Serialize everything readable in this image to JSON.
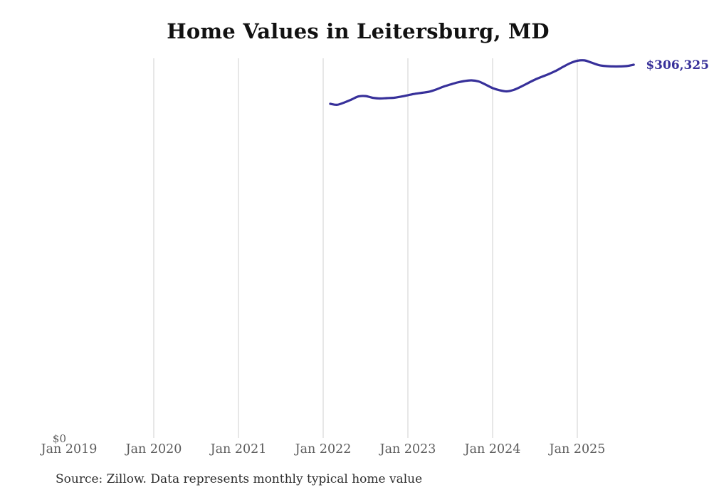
{
  "colors": {
    "background": "#ffffff",
    "line": "#37309a",
    "title": "#111111",
    "axis_labels": "#5c5c5c",
    "gridlines": "#cfcfcf",
    "source_text": "#2e2e2e"
  },
  "chart_data": {
    "type": "line",
    "title": "Home Values in Leitersburg, MD",
    "xlabel": "",
    "ylabel": "",
    "y_axis": {
      "min_label": "$0",
      "min_value": 0
    },
    "end_label": "$306,325",
    "end_value": 306325,
    "source": "Source: Zillow. Data represents monthly typical home value",
    "legend": "none",
    "grid": "vertical-only",
    "x_tick_labels": [
      {
        "label": "Jan 2019",
        "month": "2019-01",
        "gridline": false
      },
      {
        "label": "Jan 2020",
        "month": "2020-01",
        "gridline": true
      },
      {
        "label": "Jan 2021",
        "month": "2021-01",
        "gridline": true
      },
      {
        "label": "Jan 2022",
        "month": "2022-01",
        "gridline": true
      },
      {
        "label": "Jan 2023",
        "month": "2023-01",
        "gridline": true
      },
      {
        "label": "Jan 2024",
        "month": "2024-01",
        "gridline": true
      },
      {
        "label": "Jan 2025",
        "month": "2025-01",
        "gridline": true
      }
    ],
    "series": [
      {
        "name": "Monthly typical home value",
        "color": "#37309a",
        "x": [
          "2022-02",
          "2022-03",
          "2022-04",
          "2022-05",
          "2022-06",
          "2022-07",
          "2022-08",
          "2022-09",
          "2022-10",
          "2022-11",
          "2022-12",
          "2023-01",
          "2023-02",
          "2023-03",
          "2023-04",
          "2023-05",
          "2023-06",
          "2023-07",
          "2023-08",
          "2023-09",
          "2023-10",
          "2023-11",
          "2023-12",
          "2024-01",
          "2024-02",
          "2024-03",
          "2024-04",
          "2024-05",
          "2024-06",
          "2024-07",
          "2024-08",
          "2024-09",
          "2024-10",
          "2024-11",
          "2024-12",
          "2025-01",
          "2025-02",
          "2025-03",
          "2025-04",
          "2025-05",
          "2025-06",
          "2025-07",
          "2025-08",
          "2025-09"
        ],
        "values": [
          274000,
          273200,
          275100,
          277500,
          280100,
          280400,
          279000,
          278400,
          278700,
          279000,
          279900,
          281100,
          282300,
          283100,
          284000,
          285800,
          288100,
          289900,
          291600,
          292800,
          293400,
          292500,
          289900,
          287000,
          285200,
          284300,
          285500,
          288100,
          291100,
          294000,
          296400,
          298700,
          301400,
          304600,
          307600,
          309600,
          309900,
          308100,
          306100,
          305200,
          304900,
          304900,
          305200,
          306325
        ]
      }
    ]
  }
}
